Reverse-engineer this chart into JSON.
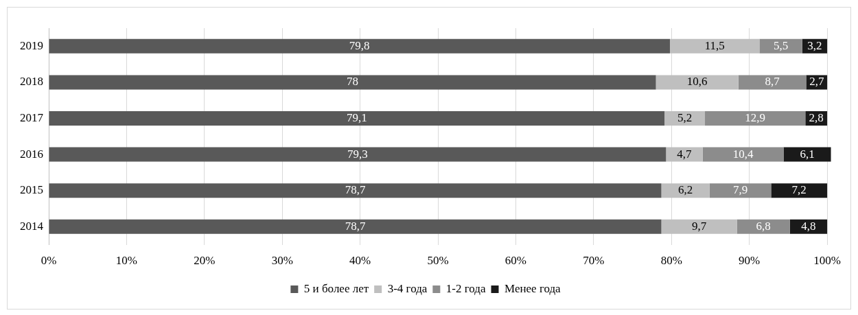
{
  "chart_data": {
    "type": "bar",
    "orientation": "horizontal",
    "stacked": true,
    "categories": [
      "2019",
      "2018",
      "2017",
      "2016",
      "2015",
      "2014"
    ],
    "series": [
      {
        "name": "5 и более лет",
        "color": "#595959",
        "values": [
          79.8,
          78,
          79.1,
          79.3,
          78.7,
          78.7
        ],
        "value_labels": [
          "79,8",
          "78",
          "79,1",
          "79,3",
          "78,7",
          "78,7"
        ]
      },
      {
        "name": "3-4 года",
        "color": "#bfbfbf",
        "values": [
          11.5,
          10.6,
          5.2,
          4.7,
          6.2,
          9.7
        ],
        "value_labels": [
          "11,5",
          "10,6",
          "5,2",
          "4,7",
          "6,2",
          "9,7"
        ]
      },
      {
        "name": "1-2 года",
        "color": "#8c8c8c",
        "values": [
          5.5,
          8.7,
          12.9,
          10.4,
          7.9,
          6.8
        ],
        "value_labels": [
          "5,5",
          "8,7",
          "12,9",
          "10,4",
          "7,9",
          "6,8"
        ]
      },
      {
        "name": "Менее года",
        "color": "#1a1a1a",
        "values": [
          3.2,
          2.7,
          2.8,
          6.1,
          7.2,
          4.8
        ],
        "value_labels": [
          "3,2",
          "2,7",
          "2,8",
          "6,1",
          "7,2",
          "4,8"
        ]
      }
    ],
    "xlim": [
      0,
      100.5
    ],
    "xticks": [
      {
        "value": 0,
        "label": "0%"
      },
      {
        "value": 10,
        "label": "10%"
      },
      {
        "value": 20,
        "label": "20%"
      },
      {
        "value": 30,
        "label": "30%"
      },
      {
        "value": 40,
        "label": "40%"
      },
      {
        "value": 50,
        "label": "50%"
      },
      {
        "value": 60,
        "label": "60%"
      },
      {
        "value": 70,
        "label": "70%"
      },
      {
        "value": 80,
        "label": "80%"
      },
      {
        "value": 90,
        "label": "90%"
      },
      {
        "value": 100,
        "label": "100%"
      }
    ],
    "grid": "x",
    "legend": "bottom"
  }
}
